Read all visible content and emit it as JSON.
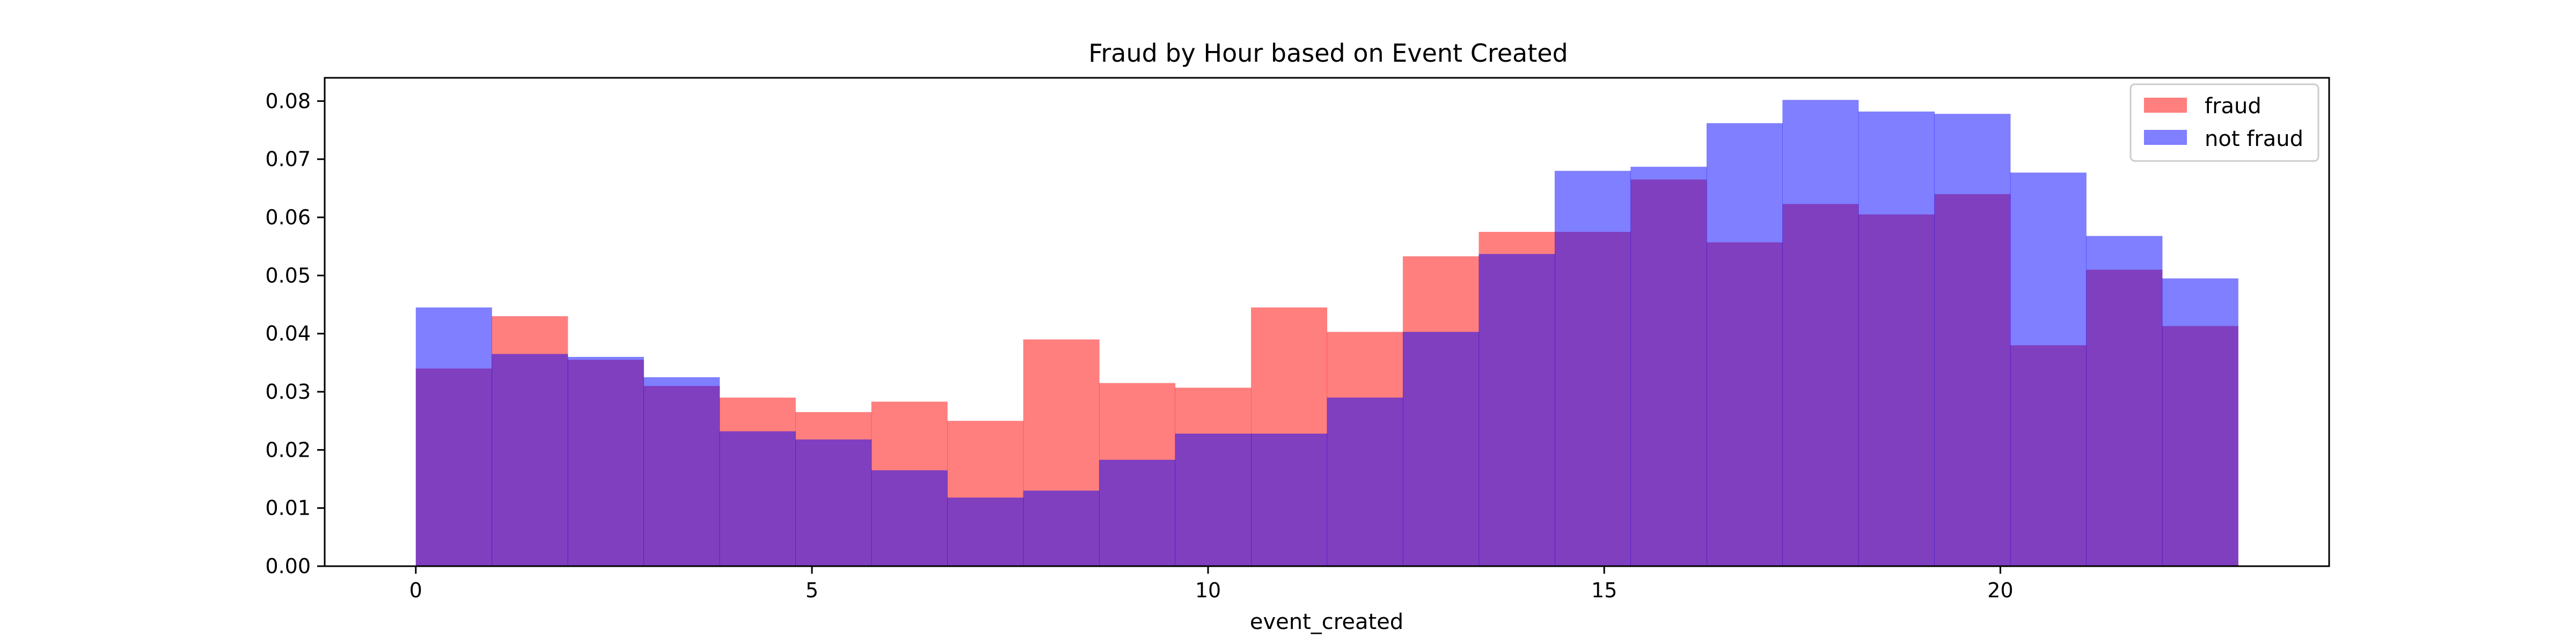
{
  "chart_data": {
    "type": "bar",
    "title": "Fraud by Hour based on Event Created",
    "xlabel": "event_created",
    "ylabel": "",
    "xlim": [
      -1.15,
      24.15
    ],
    "ylim": [
      0,
      0.084
    ],
    "x_ticks": [
      0,
      5,
      10,
      15,
      20
    ],
    "y_ticks": [
      0.0,
      0.01,
      0.02,
      0.03,
      0.04,
      0.05,
      0.06,
      0.07,
      0.08
    ],
    "grid": false,
    "legend_position": "top-right",
    "bin_edges": [
      0,
      0.958,
      1.917,
      2.875,
      3.833,
      4.792,
      5.75,
      6.708,
      7.667,
      8.625,
      9.583,
      10.542,
      11.5,
      12.458,
      13.417,
      14.375,
      15.333,
      16.292,
      17.25,
      18.208,
      19.167,
      20.125,
      21.083,
      22.042,
      23.0
    ],
    "series": [
      {
        "name": "fraud",
        "color": "#ff0000",
        "opacity": 0.5,
        "values": [
          0.034,
          0.043,
          0.0355,
          0.031,
          0.029,
          0.0265,
          0.0283,
          0.025,
          0.039,
          0.0315,
          0.0307,
          0.0445,
          0.0403,
          0.0533,
          0.0575,
          0.0575,
          0.0665,
          0.0557,
          0.0623,
          0.0605,
          0.064,
          0.038,
          0.051,
          0.0413
        ]
      },
      {
        "name": "not fraud",
        "color": "#0000ff",
        "opacity": 0.5,
        "values": [
          0.0445,
          0.0365,
          0.036,
          0.0325,
          0.0232,
          0.0218,
          0.0165,
          0.0118,
          0.013,
          0.0183,
          0.0228,
          0.0228,
          0.029,
          0.0403,
          0.0537,
          0.068,
          0.0687,
          0.0762,
          0.0802,
          0.0782,
          0.0778,
          0.0677,
          0.0568,
          0.0495
        ]
      }
    ]
  }
}
